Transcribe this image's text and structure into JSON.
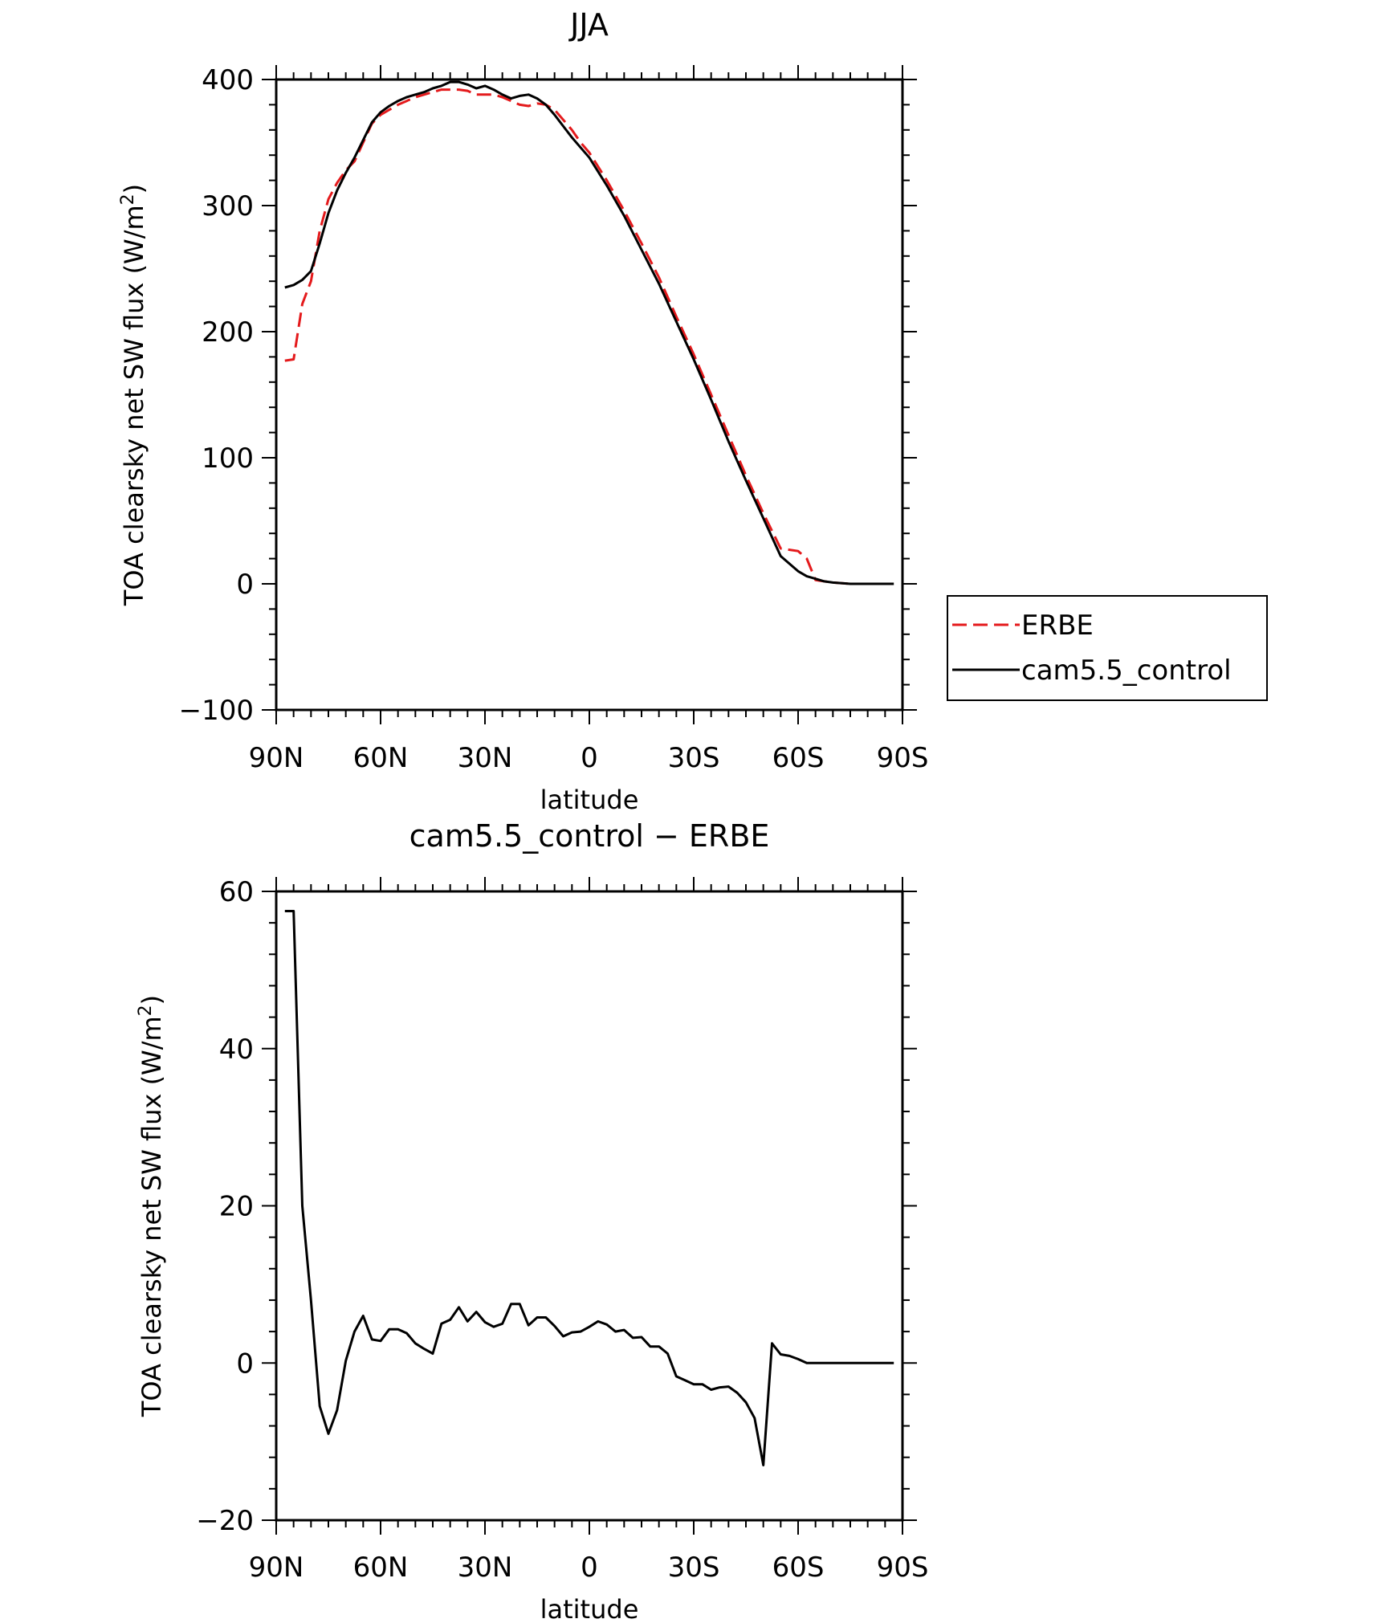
{
  "chart_data": [
    {
      "type": "line",
      "title": "JJA",
      "xlabel": "latitude",
      "ylabel": "TOA clearsky net SW flux (W/m",
      "ylabel_sup": "2",
      "ylabel_end": ")",
      "xlim": [
        90,
        -90
      ],
      "ylim": [
        -100,
        400
      ],
      "xticks": [
        90,
        60,
        30,
        0,
        -30,
        -60,
        -90
      ],
      "xtick_labels": [
        "90N",
        "60N",
        "30N",
        "0",
        "30S",
        "60S",
        "90S"
      ],
      "yticks": [
        -100,
        0,
        100,
        200,
        300,
        400
      ],
      "ytick_labels": [
        "−100",
        "0",
        "100",
        "200",
        "300",
        "400"
      ],
      "legend_position": "right",
      "series": [
        {
          "name": "ERBE",
          "color": "#e41a1c",
          "dash": "dashed",
          "x": [
            87.5,
            85,
            82.5,
            80,
            77.5,
            75,
            72.5,
            70,
            67.5,
            65,
            62.5,
            60,
            57.5,
            55,
            52.5,
            50,
            47.5,
            45,
            42.5,
            40,
            37.5,
            35,
            32.5,
            30,
            27.5,
            25,
            22.5,
            20,
            17.5,
            15,
            12.5,
            10,
            7.5,
            5,
            2.5,
            0,
            -5,
            -10,
            -15,
            -20,
            -25,
            -30,
            -35,
            -40,
            -45,
            -50,
            -55,
            -60,
            -62.5,
            -65,
            -67.5,
            -70,
            -75,
            -80,
            -85,
            -87.5
          ],
          "y": [
            177,
            178,
            222,
            240,
            280,
            305,
            318,
            328,
            335,
            350,
            365,
            372,
            376,
            380,
            383,
            386,
            388,
            390,
            392,
            392,
            392,
            391,
            388,
            388,
            388,
            386,
            383,
            380,
            379,
            381,
            380,
            376,
            368,
            360,
            350,
            342,
            320,
            296,
            270,
            243,
            212,
            182,
            150,
            118,
            86,
            56,
            28,
            26,
            20,
            3,
            2,
            1,
            0,
            0,
            0,
            0
          ]
        },
        {
          "name": "cam5.5_control",
          "color": "#000000",
          "dash": "solid",
          "x": [
            87.5,
            85,
            82.5,
            80,
            77.5,
            75,
            72.5,
            70,
            67.5,
            65,
            62.5,
            60,
            57.5,
            55,
            52.5,
            50,
            47.5,
            45,
            42.5,
            40,
            37.5,
            35,
            32.5,
            30,
            27.5,
            25,
            22.5,
            20,
            17.5,
            15,
            12.5,
            10,
            7.5,
            5,
            2.5,
            0,
            -5,
            -10,
            -15,
            -20,
            -25,
            -30,
            -35,
            -40,
            -45,
            -50,
            -55,
            -60,
            -62.5,
            -65,
            -67.5,
            -70,
            -75,
            -80,
            -85,
            -87.5
          ],
          "y": [
            235,
            237,
            241,
            248,
            270,
            294,
            312,
            326,
            338,
            352,
            366,
            374,
            379,
            383,
            386,
            388,
            390,
            393,
            395,
            398,
            398,
            396,
            393,
            395,
            392,
            388,
            385,
            387,
            388,
            385,
            380,
            372,
            363,
            354,
            346,
            338,
            316,
            292,
            265,
            238,
            208,
            178,
            146,
            113,
            82,
            52,
            22,
            10,
            6,
            4,
            2,
            1,
            0,
            0,
            0,
            0
          ]
        }
      ]
    },
    {
      "type": "line",
      "title": "cam5.5_control − ERBE",
      "xlabel": "latitude",
      "ylabel": "TOA clearsky net SW flux (W/m",
      "ylabel_sup": "2",
      "ylabel_end": ")",
      "xlim": [
        90,
        -90
      ],
      "ylim": [
        -20,
        60
      ],
      "xticks": [
        90,
        60,
        30,
        0,
        -30,
        -60,
        -90
      ],
      "xtick_labels": [
        "90N",
        "60N",
        "30N",
        "0",
        "30S",
        "60S",
        "90S"
      ],
      "yticks": [
        -20,
        0,
        20,
        40,
        60
      ],
      "ytick_labels": [
        "−20",
        "0",
        "20",
        "40",
        "60"
      ],
      "series": [
        {
          "color": "#000000",
          "dash": "solid",
          "x": [
            87.5,
            85,
            82.5,
            80,
            77.5,
            75,
            72.5,
            70,
            67.5,
            65,
            62.5,
            60,
            57.5,
            55,
            52.5,
            50,
            47.5,
            45,
            42.5,
            40,
            37.5,
            35,
            32.5,
            30,
            27.5,
            25,
            22.5,
            20,
            17.5,
            15,
            12.5,
            10,
            7.5,
            5,
            2.5,
            0,
            -2.5,
            -5,
            -7.5,
            -10,
            -12.5,
            -15,
            -17.5,
            -20,
            -22.5,
            -25,
            -27.5,
            -30,
            -32.5,
            -35,
            -37.5,
            -40,
            -42.5,
            -45,
            -47.5,
            -50,
            -52.5,
            -55,
            -57.5,
            -60,
            -62.5,
            -65,
            -67.5,
            -70,
            -72.5,
            -75,
            -77.5,
            -80,
            -82.5,
            -85,
            -87.5
          ],
          "y": [
            57.5,
            57.5,
            20,
            8,
            -5.5,
            -9,
            -6,
            0.3,
            4,
            6,
            3,
            2.8,
            4.3,
            4.3,
            3.8,
            2.5,
            1.8,
            1.2,
            5,
            5.5,
            7.1,
            5.3,
            6.5,
            5.2,
            4.6,
            5,
            7.5,
            7.5,
            4.8,
            5.8,
            5.8,
            4.7,
            3.4,
            3.9,
            4,
            4.6,
            5.3,
            4.9,
            4,
            4.2,
            3.2,
            3.3,
            2.1,
            2.1,
            1.2,
            -1.7,
            -2.2,
            -2.7,
            -2.7,
            -3.4,
            -3.1,
            -3,
            -3.8,
            -5,
            -7,
            -13,
            2.5,
            1.1,
            0.9,
            0.5,
            0,
            0,
            0,
            0,
            0,
            0,
            0,
            0,
            0,
            0,
            0
          ]
        }
      ]
    }
  ]
}
